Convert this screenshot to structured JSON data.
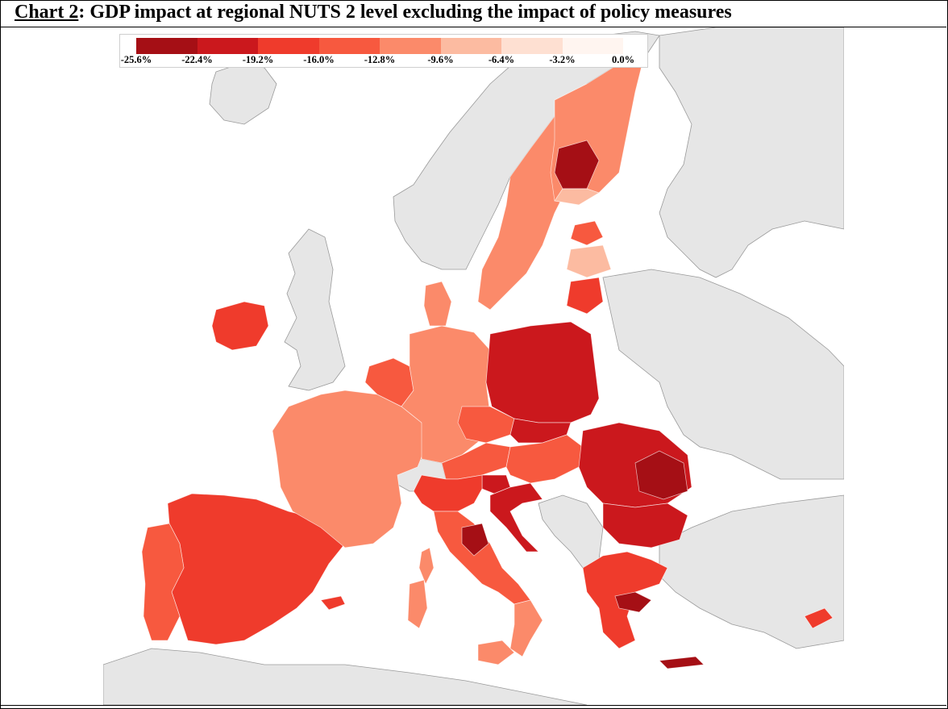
{
  "title": {
    "label": "Chart 2",
    "text": ": GDP impact at regional NUTS 2 level excluding the impact of policy measures"
  },
  "legend": {
    "ticks": [
      "-25.6%",
      "-22.4%",
      "-19.2%",
      "-16.0%",
      "-12.8%",
      "-9.6%",
      "-6.4%",
      "-3.2%",
      "0.0%"
    ],
    "colors": [
      "#a50f15",
      "#cb181d",
      "#ef3b2c",
      "#f7593f",
      "#fb8a6a",
      "#fcbba1",
      "#fee0d2",
      "#fff5f0"
    ]
  },
  "map": {
    "non_eu_color": "#e6e6e6",
    "border_color": "#9a9a9a",
    "sea_color": "#ffffff"
  }
}
